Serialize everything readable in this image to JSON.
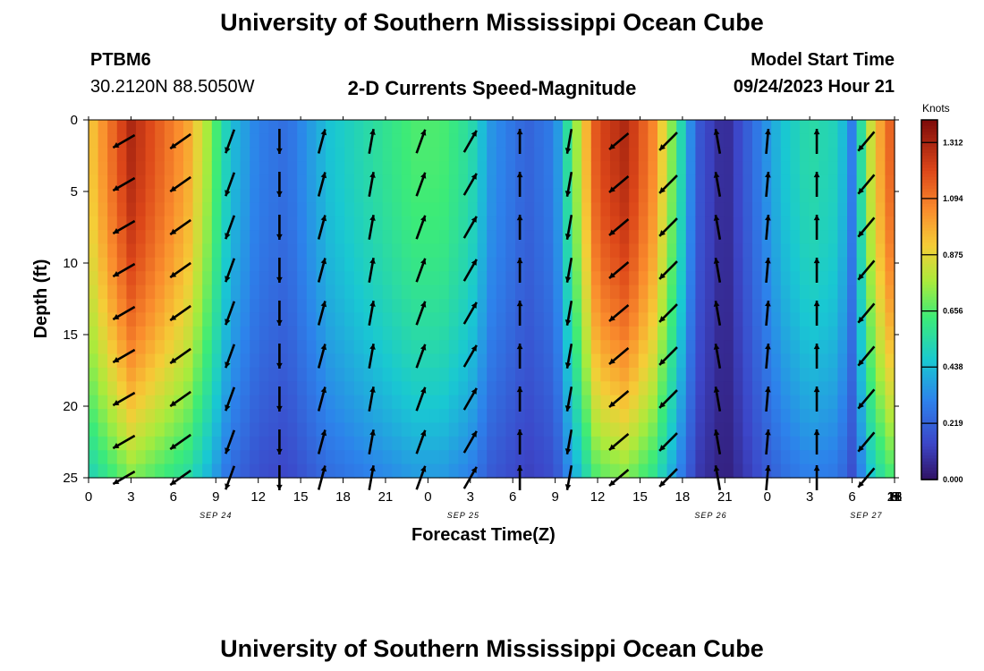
{
  "header": {
    "title": "University of Southern Mississippi Ocean Cube",
    "station": "PTBM6",
    "location": "30.2120N  88.5050W",
    "subtitle": "2-D Currents Speed-Magnitude",
    "model_label": "Model Start Time",
    "model_time": "09/24/2023 Hour 21"
  },
  "footer": {
    "title": "University of Southern Mississippi Ocean Cube"
  },
  "chart_data": {
    "type": "heatmap",
    "title": "2-D Currents Speed-Magnitude",
    "xlabel": "Forecast Time(Z)",
    "ylabel": "Depth (ft)",
    "x_hours_range": [
      0,
      57
    ],
    "y_range": [
      0,
      25
    ],
    "y_inverted": true,
    "x_tick_labels": [
      "0",
      "3",
      "6",
      "9",
      "12",
      "15",
      "18",
      "21",
      "0",
      "3",
      "6",
      "9",
      "12",
      "15",
      "18",
      "21",
      "0",
      "3",
      "6",
      "9",
      "12",
      "15",
      "18",
      "21",
      "0",
      "3",
      "6"
    ],
    "y_tick_labels": [
      "0",
      "5",
      "10",
      "15",
      "20",
      "25"
    ],
    "date_labels": [
      {
        "text": "SEP 24",
        "hour": 9
      },
      {
        "text": "SEP 25",
        "hour": 26.5
      },
      {
        "text": "SEP 26",
        "hour": 44
      },
      {
        "text": "SEP 27",
        "hour": 55
      }
    ],
    "colorbar": {
      "title": "Knots",
      "ticks": [
        "1.312",
        "1.094",
        "0.875",
        "0.656",
        "0.438",
        "0.219",
        "0.000"
      ],
      "range": [
        0,
        1.4
      ]
    },
    "speed_profile_by_hour": [
      {
        "hour": 0,
        "speed": 0.9
      },
      {
        "hour": 3,
        "speed": 1.3
      },
      {
        "hour": 5,
        "speed": 1.15
      },
      {
        "hour": 7,
        "speed": 1.0
      },
      {
        "hour": 8.5,
        "speed": 0.75
      },
      {
        "hour": 10,
        "speed": 0.45
      },
      {
        "hour": 12,
        "speed": 0.3
      },
      {
        "hour": 14,
        "speed": 0.25
      },
      {
        "hour": 17,
        "speed": 0.45
      },
      {
        "hour": 20,
        "speed": 0.55
      },
      {
        "hour": 23,
        "speed": 0.65
      },
      {
        "hour": 25,
        "speed": 0.65
      },
      {
        "hour": 27,
        "speed": 0.55
      },
      {
        "hour": 28.5,
        "speed": 0.35
      },
      {
        "hour": 31,
        "speed": 0.22
      },
      {
        "hour": 33,
        "speed": 0.3
      },
      {
        "hour": 34.5,
        "speed": 0.75
      },
      {
        "hour": 36,
        "speed": 1.2
      },
      {
        "hour": 38,
        "speed": 1.3
      },
      {
        "hour": 40,
        "speed": 1.05
      },
      {
        "hour": 41.5,
        "speed": 0.65
      },
      {
        "hour": 43,
        "speed": 0.2
      },
      {
        "hour": 45,
        "speed": 0.05
      },
      {
        "hour": 47,
        "speed": 0.25
      },
      {
        "hour": 49,
        "speed": 0.45
      },
      {
        "hour": 51,
        "speed": 0.55
      },
      {
        "hour": 53,
        "speed": 0.5
      },
      {
        "hour": 54,
        "speed": 0.3
      },
      {
        "hour": 55.5,
        "speed": 0.9
      },
      {
        "hour": 57,
        "speed": 1.2
      }
    ],
    "arrow_directions_by_column": [
      {
        "hour": 2.5,
        "angle_deg": 240
      },
      {
        "hour": 6.5,
        "angle_deg": 235
      },
      {
        "hour": 10,
        "angle_deg": 200
      },
      {
        "hour": 13.5,
        "angle_deg": 180
      },
      {
        "hour": 16.5,
        "angle_deg": 15
      },
      {
        "hour": 20,
        "angle_deg": 10
      },
      {
        "hour": 23.5,
        "angle_deg": 20
      },
      {
        "hour": 27,
        "angle_deg": 30
      },
      {
        "hour": 30.5,
        "angle_deg": 0
      },
      {
        "hour": 34,
        "angle_deg": 190
      },
      {
        "hour": 37.5,
        "angle_deg": 230
      },
      {
        "hour": 41,
        "angle_deg": 225
      },
      {
        "hour": 44.5,
        "angle_deg": 350
      },
      {
        "hour": 48,
        "angle_deg": 5
      },
      {
        "hour": 51.5,
        "angle_deg": 0
      },
      {
        "hour": 55,
        "angle_deg": 220
      }
    ]
  }
}
